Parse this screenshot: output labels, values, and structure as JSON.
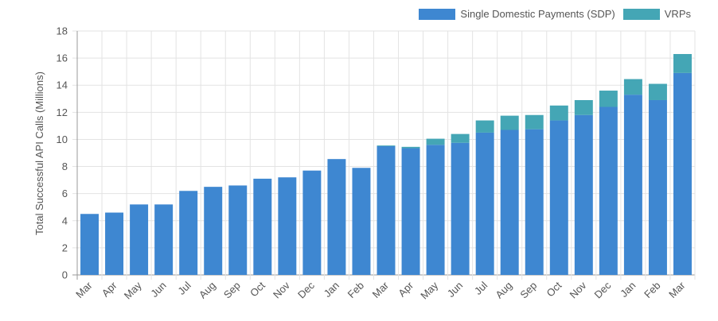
{
  "chart_data": {
    "type": "bar",
    "stacked": true,
    "categories": [
      "Mar",
      "Apr",
      "May",
      "Jun",
      "Jul",
      "Aug",
      "Sep",
      "Oct",
      "Nov",
      "Dec",
      "Jan",
      "Feb",
      "Mar",
      "Apr",
      "May",
      "Jun",
      "Jul",
      "Aug",
      "Sep",
      "Oct",
      "Nov",
      "Dec",
      "Jan",
      "Feb",
      "Mar"
    ],
    "series": [
      {
        "name": "Single Domestic Payments (SDP)",
        "color": "#3e87d1",
        "values": [
          4.5,
          4.6,
          5.2,
          5.2,
          6.2,
          6.5,
          6.6,
          7.1,
          7.2,
          7.7,
          8.55,
          7.9,
          9.5,
          9.35,
          9.6,
          9.75,
          10.5,
          10.7,
          10.75,
          11.4,
          11.8,
          12.4,
          13.3,
          12.9,
          14.9
        ]
      },
      {
        "name": "VRPs",
        "color": "#44a6b5",
        "values": [
          0,
          0,
          0,
          0,
          0,
          0,
          0,
          0,
          0,
          0,
          0,
          0,
          0.05,
          0.1,
          0.45,
          0.65,
          0.9,
          1.05,
          1.05,
          1.1,
          1.1,
          1.2,
          1.15,
          1.2,
          1.4
        ]
      }
    ],
    "ylabel": "Total Successful API Calls (Millions)",
    "xlabel": "",
    "ylim": [
      0,
      18
    ],
    "yticks": [
      0,
      2,
      4,
      6,
      8,
      10,
      12,
      14,
      16,
      18
    ],
    "grid": true,
    "legend_position": "top-right"
  }
}
